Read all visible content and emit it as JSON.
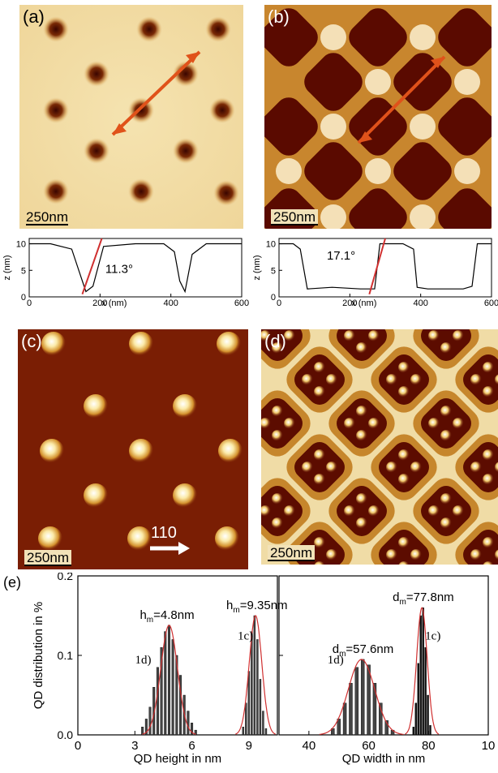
{
  "panels": {
    "a": {
      "label": "(a)",
      "scale": "250nm"
    },
    "b": {
      "label": "(b)",
      "scale": "250nm"
    },
    "c": {
      "label": "(c)",
      "scale": "250nm",
      "direction": "110"
    },
    "d": {
      "label": "(d)",
      "scale": "250nm"
    }
  },
  "profiles": {
    "a": {
      "ylabel": "z (nm)",
      "xlabel": "x (nm)",
      "angle": "11.3°",
      "xticks": [
        "0",
        "200",
        "400",
        "600"
      ],
      "yticks": [
        "0",
        "5",
        "10"
      ]
    },
    "b": {
      "ylabel": "z (nm)",
      "xlabel": "x (nm)",
      "angle": "17.1°",
      "xticks": [
        "0",
        "200",
        "400",
        "600"
      ],
      "yticks": [
        "0",
        "5",
        "10"
      ]
    }
  },
  "histograms": {
    "label": "(e)",
    "ylabel": "QD distribution in %",
    "yticks": [
      "0.0",
      "0.1",
      "0.2"
    ],
    "left": {
      "xlabel": "QD height in nm",
      "xticks": [
        "0",
        "3",
        "6",
        "9"
      ],
      "m1_label": "h",
      "m1_sub": "m",
      "m1_val": "=4.8nm",
      "m2_label": "h",
      "m2_sub": "m",
      "m2_val": "=9.35nm",
      "s1": "1d)",
      "s2": "1c)"
    },
    "right": {
      "xlabel": "QD width in nm",
      "xticks": [
        "40",
        "60",
        "80",
        "10"
      ],
      "m1_label": "d",
      "m1_sub": "m",
      "m1_val": "=57.6nm",
      "m2_label": "d",
      "m2_sub": "m",
      "m2_val": "=77.8nm",
      "s1": "1d)",
      "s2": "1c)"
    }
  },
  "colors": {
    "accent_arrow": "#e0521a",
    "fit_line": "#d03030",
    "afm_dark": "#5a0a00",
    "afm_mid": "#c98a3a",
    "afm_light": "#f8ecc4"
  },
  "chart_data": [
    {
      "type": "line",
      "title": "",
      "xlabel": "x (nm)",
      "ylabel": "z (nm)",
      "xlim": [
        0,
        600
      ],
      "ylim": [
        0,
        11
      ],
      "annotation": "11.3°",
      "x": [
        0,
        60,
        120,
        145,
        160,
        180,
        210,
        300,
        380,
        410,
        425,
        440,
        460,
        500,
        560,
        600
      ],
      "y": [
        10,
        10,
        9,
        4,
        1,
        2,
        9.5,
        10,
        10,
        8.5,
        3,
        1,
        8,
        10,
        10,
        10
      ]
    },
    {
      "type": "line",
      "title": "",
      "xlabel": "x (nm)",
      "ylabel": "z (nm)",
      "xlim": [
        0,
        600
      ],
      "ylim": [
        0,
        11
      ],
      "annotation": "17.1°",
      "x": [
        0,
        40,
        60,
        80,
        150,
        230,
        270,
        285,
        300,
        350,
        380,
        390,
        420,
        520,
        545,
        560,
        600
      ],
      "y": [
        10,
        10,
        9,
        1.5,
        1.8,
        1.5,
        1.5,
        10,
        10,
        10,
        9,
        1.8,
        1.5,
        1.5,
        2,
        10,
        10
      ]
    },
    {
      "type": "bar",
      "title": "",
      "xlabel": "QD height in nm",
      "ylabel": "QD distribution in %",
      "xlim": [
        0,
        10.5
      ],
      "ylim": [
        0,
        0.2
      ],
      "series": [
        {
          "name": "1d)",
          "mean": 4.8,
          "x": [
            3.4,
            3.6,
            3.8,
            4.0,
            4.2,
            4.4,
            4.6,
            4.8,
            5.0,
            5.2,
            5.4,
            5.6,
            5.8,
            6.0,
            6.2
          ],
          "values": [
            0.01,
            0.02,
            0.035,
            0.06,
            0.085,
            0.11,
            0.13,
            0.138,
            0.12,
            0.1,
            0.075,
            0.05,
            0.03,
            0.015,
            0.006
          ]
        },
        {
          "name": "1c)",
          "mean": 9.35,
          "x": [
            8.7,
            8.85,
            9.0,
            9.15,
            9.3,
            9.45,
            9.6,
            9.75,
            9.9
          ],
          "values": [
            0.01,
            0.04,
            0.08,
            0.13,
            0.15,
            0.12,
            0.07,
            0.03,
            0.008
          ]
        }
      ]
    },
    {
      "type": "bar",
      "title": "",
      "xlabel": "QD width in nm",
      "ylabel": "",
      "xlim": [
        30,
        100
      ],
      "ylim": [
        0,
        0.2
      ],
      "series": [
        {
          "name": "1d)",
          "mean": 57.6,
          "x": [
            48,
            50,
            52,
            54,
            56,
            58,
            60,
            62,
            64,
            66,
            68
          ],
          "values": [
            0.008,
            0.02,
            0.04,
            0.065,
            0.085,
            0.095,
            0.088,
            0.065,
            0.04,
            0.018,
            0.006
          ]
        },
        {
          "name": "1c)",
          "mean": 77.8,
          "x": [
            75,
            75.8,
            76.6,
            77.4,
            78.2,
            79,
            79.8,
            80.6
          ],
          "values": [
            0.01,
            0.04,
            0.09,
            0.15,
            0.16,
            0.11,
            0.05,
            0.012
          ]
        }
      ]
    }
  ]
}
